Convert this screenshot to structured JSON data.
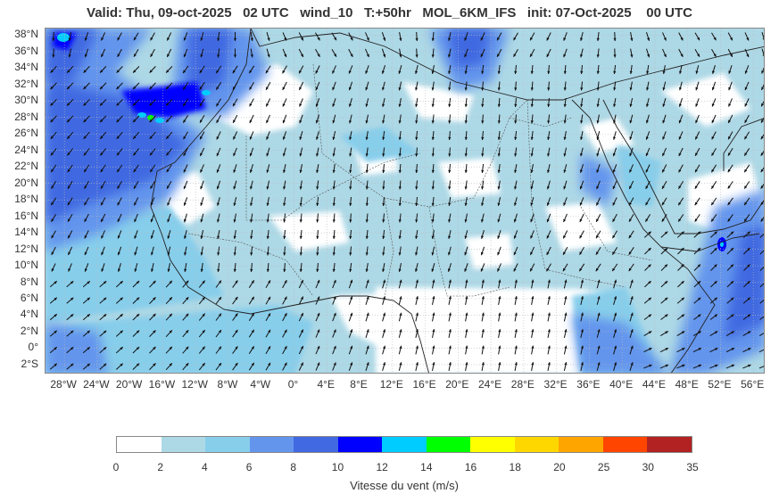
{
  "title": "Valid: Thu, 09-oct-2025   02 UTC   wind_10   T:+50hr   MOL_6KM_IFS   init: 07-Oct-2025    00 UTC",
  "map": {
    "lat_labels": [
      "38°N",
      "36°N",
      "34°N",
      "32°N",
      "30°N",
      "28°N",
      "26°N",
      "24°N",
      "22°N",
      "20°N",
      "18°N",
      "16°N",
      "14°N",
      "12°N",
      "10°N",
      "8°N",
      "6°N",
      "4°N",
      "2°N",
      "0°",
      "2°S"
    ],
    "lon_labels": [
      "28°W",
      "24°W",
      "20°W",
      "16°W",
      "12°W",
      "8°W",
      "4°W",
      "0°",
      "4°E",
      "8°E",
      "12°E",
      "16°E",
      "20°E",
      "24°E",
      "28°E",
      "32°E",
      "36°E",
      "40°E",
      "44°E",
      "48°E",
      "52°E",
      "56°E"
    ],
    "extent": {
      "lon_min": -30.3,
      "lon_max": 57.5,
      "lat_min": -3.2,
      "lat_max": 38.8
    },
    "colors": {
      "land_border": "#555555",
      "coast": "#222222",
      "arrow": "#111111"
    }
  },
  "colorbar": {
    "colors": [
      "#ffffff",
      "#add8e6",
      "#87ceeb",
      "#6495ed",
      "#4169e1",
      "#0000ff",
      "#00ccff",
      "#00ff00",
      "#ffff00",
      "#ffd700",
      "#ffa500",
      "#ff4500",
      "#b22222"
    ],
    "ticks": [
      "0",
      "2",
      "4",
      "6",
      "8",
      "10",
      "12",
      "14",
      "16",
      "18",
      "20",
      "25",
      "30",
      "35"
    ],
    "label": "Vitesse du vent (m/s)"
  }
}
